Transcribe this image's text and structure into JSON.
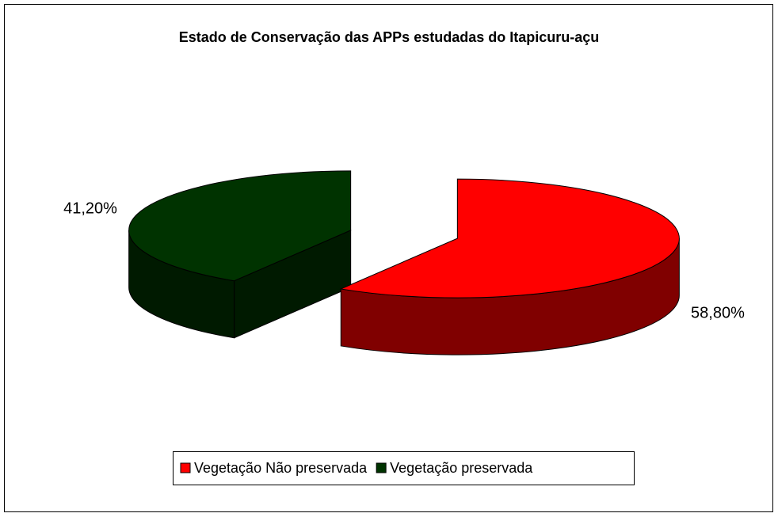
{
  "chart_data": {
    "type": "pie",
    "title": "Estado de Conservação das APPs estudadas do Itapicuru-açu",
    "categories": [
      "Vegetação Não preservada",
      "Vegetação preservada"
    ],
    "values": [
      58.8,
      41.2
    ],
    "value_labels": [
      "58,80%",
      "41,20%"
    ],
    "colors": [
      "#ff0000",
      "#003300"
    ],
    "legend": "bottom"
  }
}
